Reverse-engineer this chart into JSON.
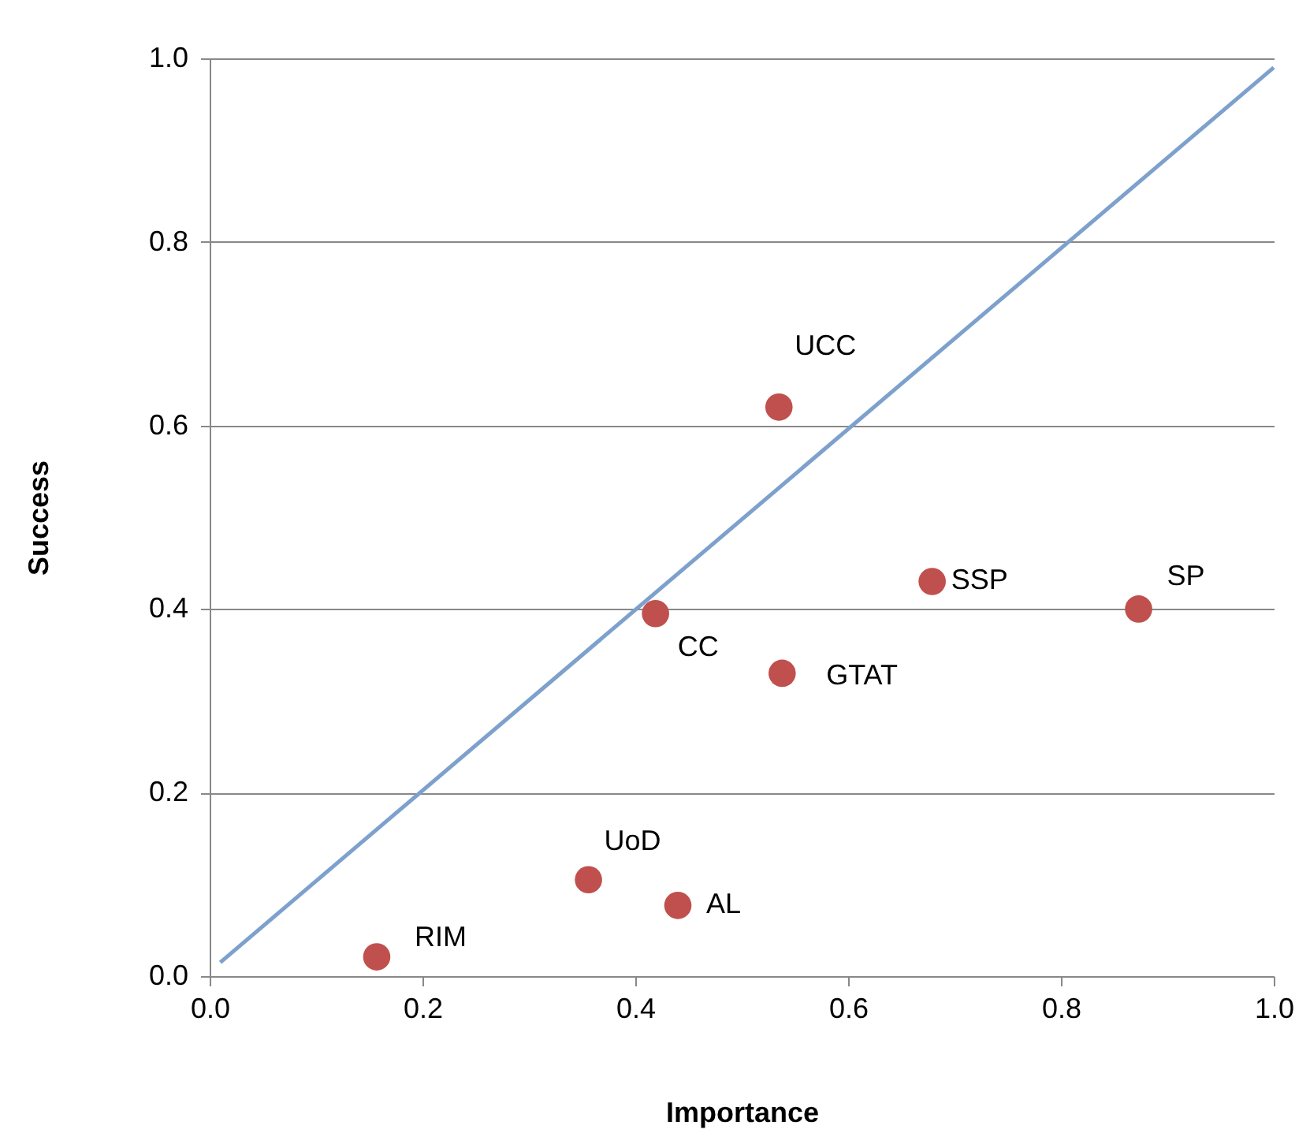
{
  "chart_data": {
    "type": "scatter",
    "xlabel": "Importance",
    "ylabel": "Success",
    "xlim": [
      0,
      1
    ],
    "ylim": [
      0,
      1
    ],
    "xticks": [
      {
        "value": 0,
        "label": "0.0"
      },
      {
        "value": 0.2,
        "label": "0.2"
      },
      {
        "value": 0.4,
        "label": "0.4"
      },
      {
        "value": 0.6,
        "label": "0.6"
      },
      {
        "value": 0.8,
        "label": "0.8"
      },
      {
        "value": 1,
        "label": "1.0"
      }
    ],
    "yticks": [
      {
        "value": 0,
        "label": "0.0"
      },
      {
        "value": 0.2,
        "label": "0.2"
      },
      {
        "value": 0.4,
        "label": "0.4"
      },
      {
        "value": 0.6,
        "label": "0.6"
      },
      {
        "value": 0.8,
        "label": "0.8"
      },
      {
        "value": 1,
        "label": "1.0"
      }
    ],
    "grid": "y",
    "series": [
      {
        "marker": "circle",
        "color": "#c0504d",
        "x": [
          0.535,
          0.679,
          0.873,
          0.419,
          0.538,
          0.356,
          0.44,
          0.157
        ],
        "values": [
          0.62,
          0.43,
          0.4,
          0.395,
          0.33,
          0.105,
          0.077,
          0.021
        ]
      },
      {
        "type": "line",
        "color": "#7da1cc",
        "line_style": "solid",
        "x": [
          0.01,
          1.0
        ],
        "values": [
          0.015,
          0.99
        ]
      }
    ],
    "annotations": [
      {
        "text": "UCC",
        "x": 0.535,
        "y": 0.62
      },
      {
        "text": "SSP",
        "x": 0.679,
        "y": 0.43
      },
      {
        "text": "SP",
        "x": 0.873,
        "y": 0.4
      },
      {
        "text": "CC",
        "x": 0.419,
        "y": 0.395
      },
      {
        "text": "GTAT",
        "x": 0.538,
        "y": 0.33
      },
      {
        "text": "UoD",
        "x": 0.356,
        "y": 0.105
      },
      {
        "text": "AL",
        "x": 0.44,
        "y": 0.077
      },
      {
        "text": "RIM",
        "x": 0.157,
        "y": 0.021
      }
    ]
  }
}
